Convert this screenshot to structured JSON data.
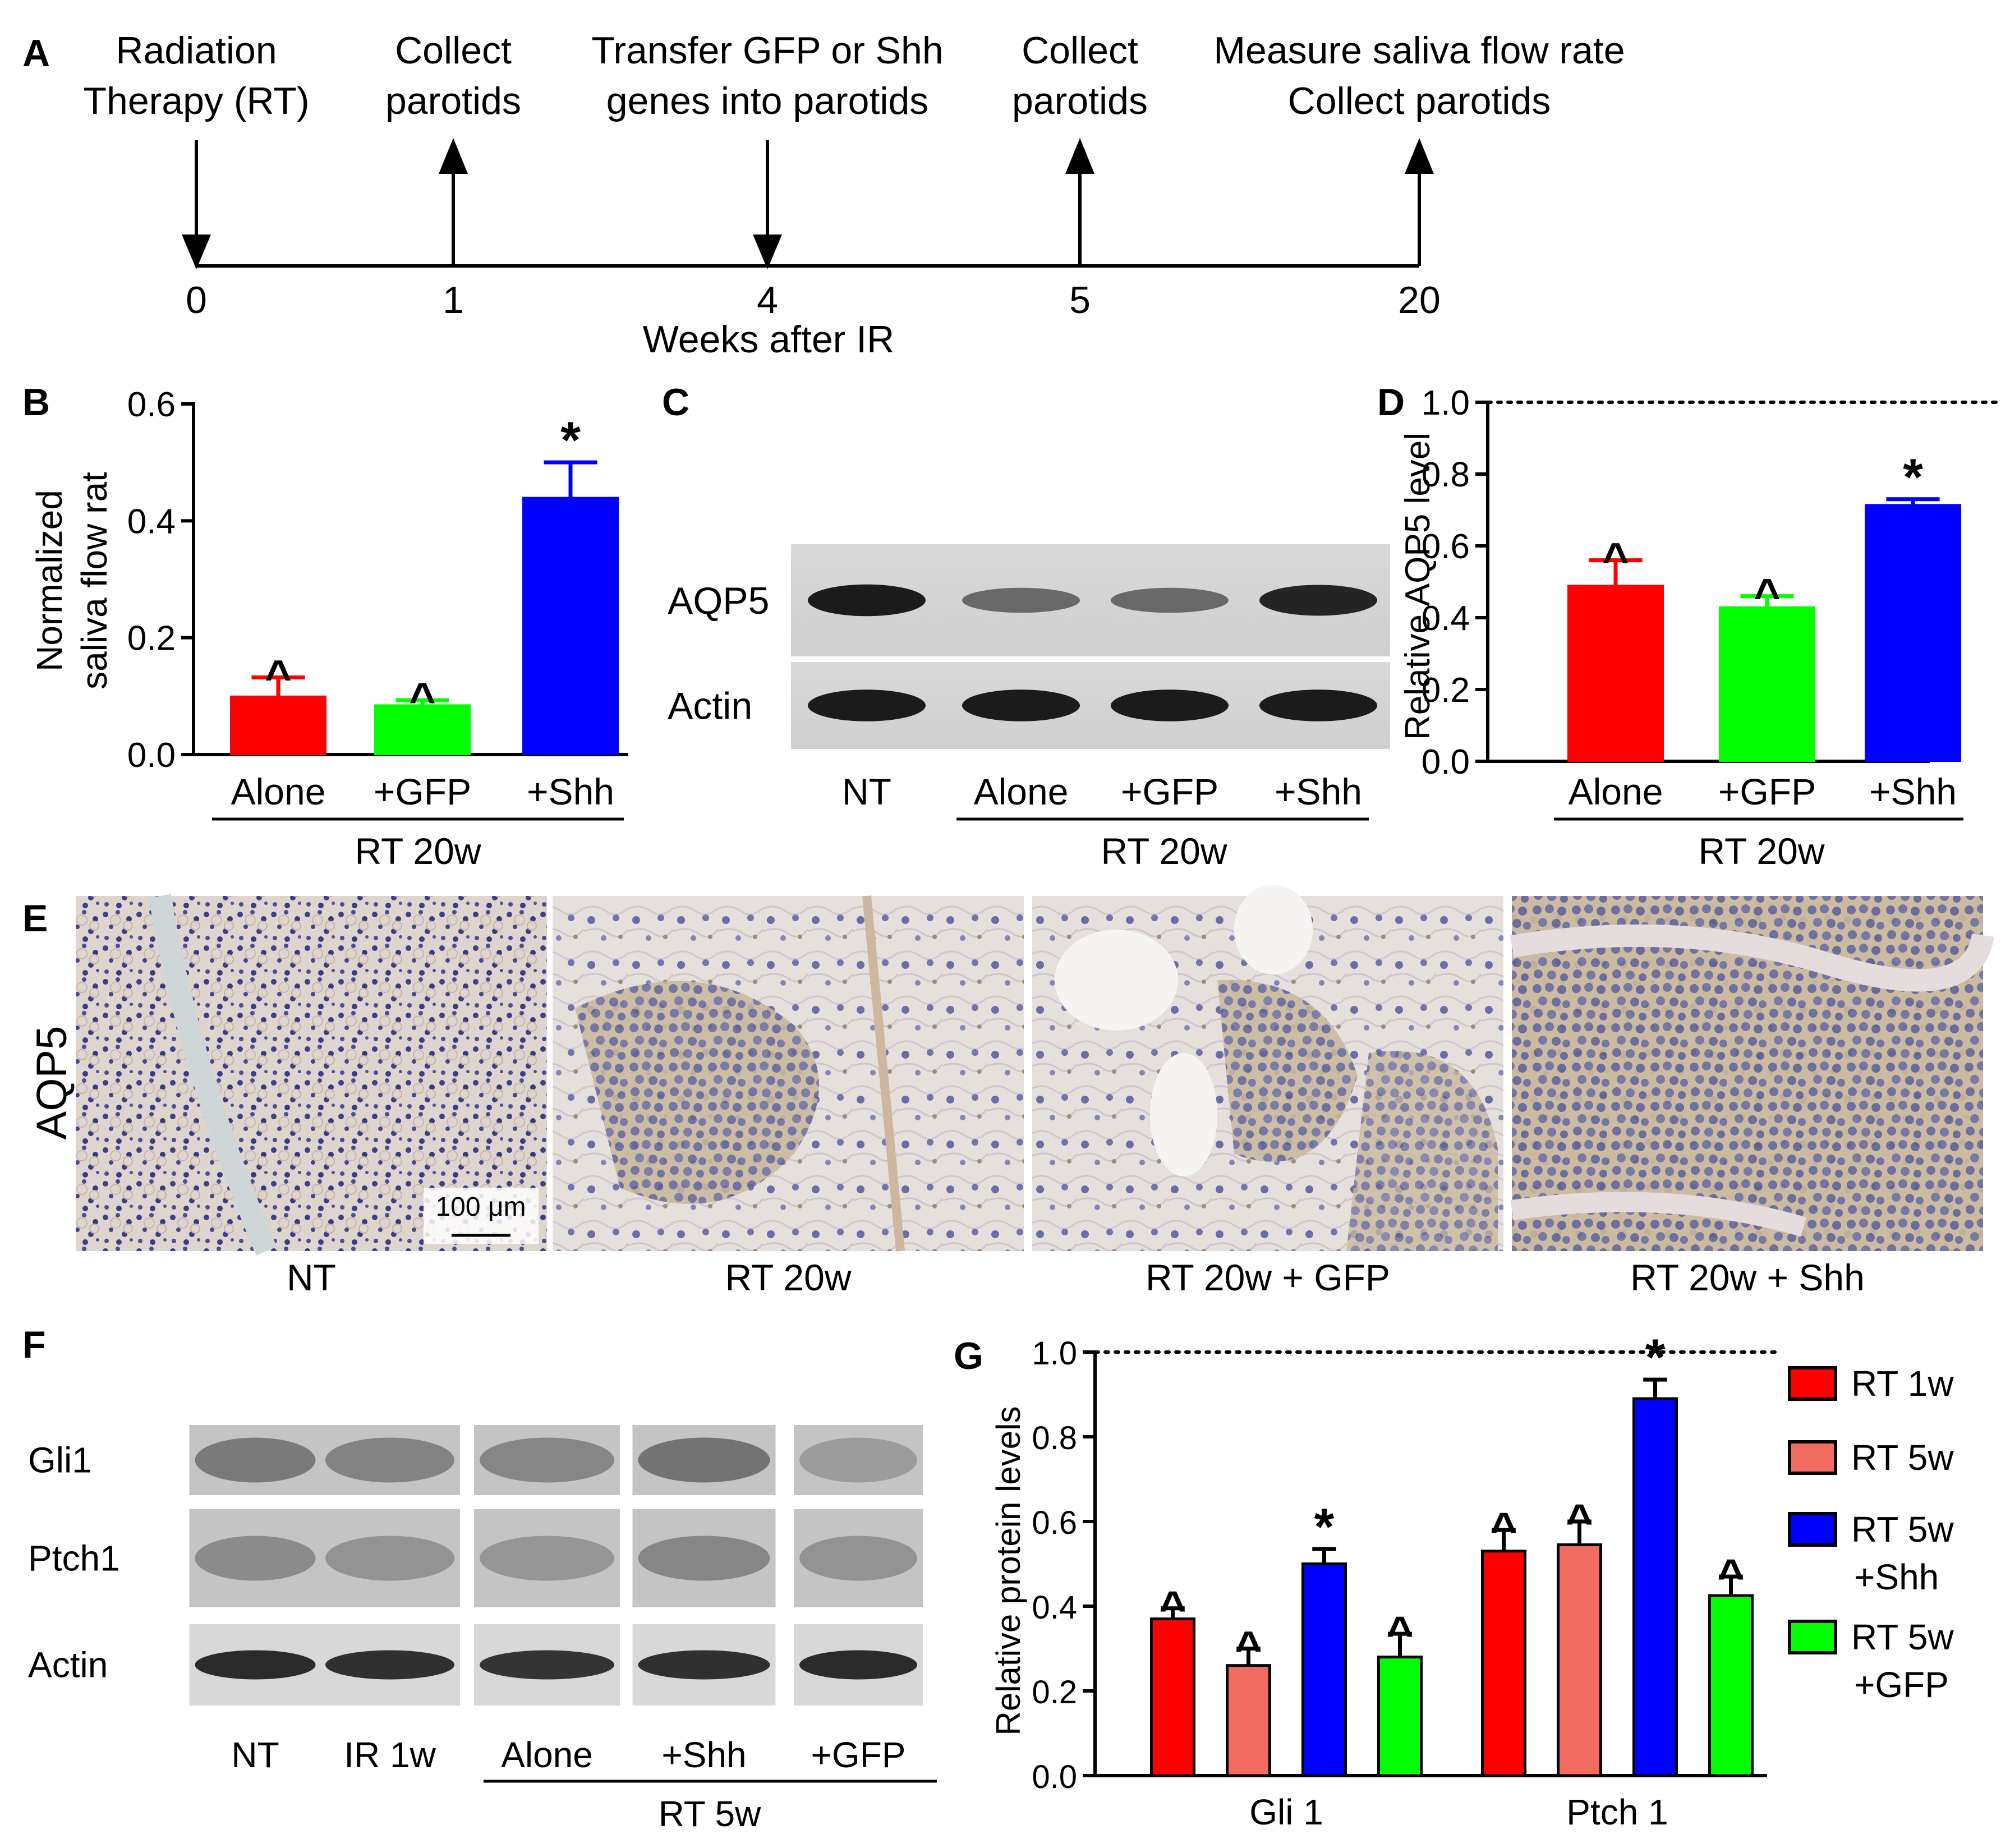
{
  "panels": {
    "A": "A",
    "B": "B",
    "C": "C",
    "D": "D",
    "E": "E",
    "F": "F",
    "G": "G"
  },
  "timeline": {
    "events": [
      {
        "week": "0",
        "line1": "Radiation",
        "line2": "Therapy (RT)",
        "dir": "down",
        "color": "#e8212a"
      },
      {
        "week": "1",
        "line1": "Collect",
        "line2": "parotids",
        "dir": "up",
        "color": "#000000"
      },
      {
        "week": "4",
        "line1": "Transfer GFP or Shh",
        "line2": "genes into parotids",
        "dir": "down",
        "color": "#000000"
      },
      {
        "week": "5",
        "line1": "Collect",
        "line2": "parotids",
        "dir": "up",
        "color": "#000000"
      },
      {
        "week": "20",
        "line1": "Measure saliva flow rate",
        "line2": "Collect parotids",
        "dir": "up",
        "color": "#000000"
      }
    ],
    "axis_label": "Weeks after IR"
  },
  "chart_data": [
    {
      "panel": "B",
      "type": "bar",
      "categories": [
        "Alone",
        "+GFP",
        "+Shh"
      ],
      "values": [
        0.1,
        0.085,
        0.44
      ],
      "errors": [
        0.032,
        0.008,
        0.06
      ],
      "markers": [
        "^",
        "^",
        "*"
      ],
      "colors": [
        "#ff0000",
        "#00ff00",
        "#0000ff"
      ],
      "ylabel": [
        "Normalized",
        "saliva flow rat"
      ],
      "yticks": [
        "0.0",
        "0.2",
        "0.4",
        "0.6"
      ],
      "ylim": [
        0,
        0.6
      ],
      "group_label": "RT 20w"
    },
    {
      "panel": "D",
      "type": "bar",
      "categories": [
        "Alone",
        "+GFP",
        "+Shh"
      ],
      "values": [
        0.49,
        0.43,
        0.715
      ],
      "errors": [
        0.07,
        0.03,
        0.015
      ],
      "markers": [
        "^",
        "^",
        "*"
      ],
      "colors": [
        "#ff0000",
        "#00ff00",
        "#0000ff"
      ],
      "ylabel": "Relative AQP5 level",
      "yticks": [
        "0.0",
        "0.2",
        "0.4",
        "0.6",
        "0.8",
        "1.0"
      ],
      "ylim": [
        0,
        1.0
      ],
      "reference_line": 1.0,
      "group_label": "RT 20w"
    },
    {
      "panel": "G",
      "type": "bar",
      "categories": [
        "Gli 1",
        "Ptch 1"
      ],
      "series": [
        {
          "name": "RT 1w",
          "color": "#ff0000",
          "values": [
            0.37,
            0.53
          ],
          "errors": [
            0.025,
            0.05
          ],
          "markers": [
            "^",
            "^"
          ]
        },
        {
          "name": "RT 5w",
          "color": "#f26b61",
          "values": [
            0.26,
            0.545
          ],
          "errors": [
            0.04,
            0.055
          ],
          "markers": [
            "^",
            "^"
          ]
        },
        {
          "name": "RT 5w +Shh",
          "color": "#0000ff",
          "values": [
            0.5,
            0.89
          ],
          "errors": [
            0.035,
            0.045
          ],
          "markers": [
            "*",
            "*"
          ]
        },
        {
          "name": "RT 5w +GFP",
          "color": "#00ff00",
          "values": [
            0.28,
            0.425
          ],
          "errors": [
            0.055,
            0.045
          ],
          "markers": [
            "^",
            "^"
          ]
        }
      ],
      "legend": [
        {
          "line1": "RT 1w",
          "line2": ""
        },
        {
          "line1": "RT 5w",
          "line2": ""
        },
        {
          "line1": "RT 5w",
          "line2": "+Shh"
        },
        {
          "line1": "RT 5w",
          "line2": "+GFP"
        }
      ],
      "ylabel": "Relative protein levels",
      "yticks": [
        "0.0",
        "0.2",
        "0.4",
        "0.6",
        "0.8",
        "1.0"
      ],
      "ylim": [
        0,
        1.0
      ],
      "reference_line": 1.0,
      "legend_position": "right"
    }
  ],
  "blot_C": {
    "rows": [
      "AQP5",
      "Actin"
    ],
    "lanes": [
      "NT",
      "Alone",
      "+GFP",
      "+Shh"
    ],
    "group_label": "RT 20w",
    "band_intensity": {
      "AQP5": [
        0.95,
        0.55,
        0.55,
        0.9
      ],
      "Actin": [
        0.95,
        0.95,
        0.95,
        0.95
      ]
    }
  },
  "blot_F": {
    "rows": [
      "Gli1",
      "Ptch1",
      "Actin"
    ],
    "lanes": [
      "NT",
      "IR 1w",
      "Alone",
      "+Shh",
      "+GFP"
    ],
    "group_label": "RT 5w"
  },
  "histology_E": {
    "row_label": "AQP5",
    "images": [
      "NT",
      "RT 20w",
      "RT 20w + GFP",
      "RT 20w + Shh"
    ],
    "scale_bar": "100 μm"
  }
}
